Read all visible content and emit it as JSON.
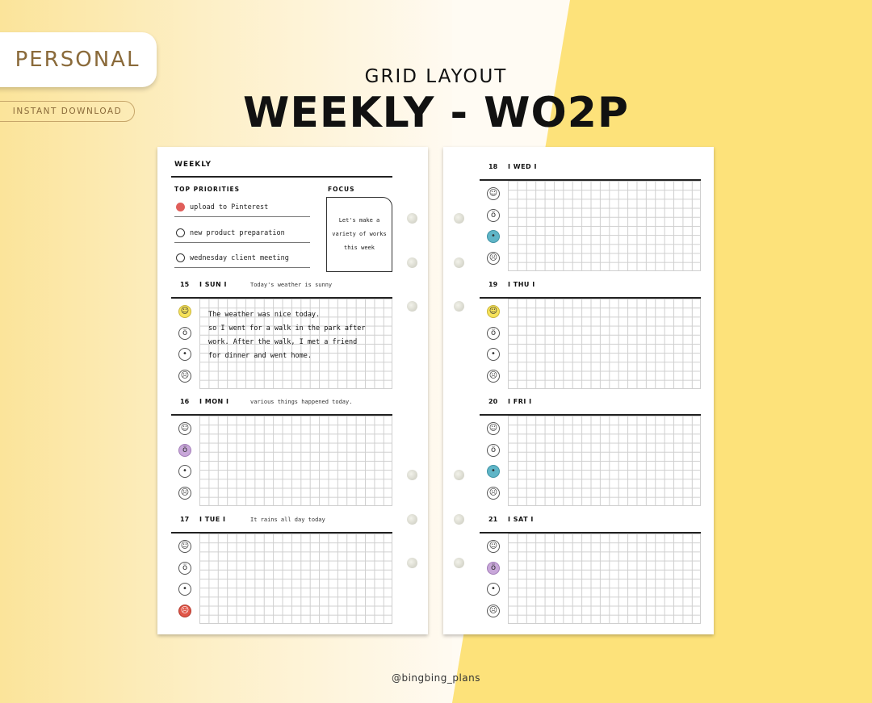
{
  "brand": {
    "badge": "PERSONAL",
    "instant_download": "INSTANT DOWNLOAD",
    "subtitle": "GRID LAYOUT",
    "title": "WEEKLY - WO2P",
    "handle": "@bingbing_plans"
  },
  "planner": {
    "weekly_label": "WEEKLY",
    "top_priorities_label": "TOP PRIORITIES",
    "focus_label": "FOCUS",
    "priorities": [
      {
        "text": "upload to Pinterest",
        "checked": true
      },
      {
        "text": "new product preparation",
        "checked": false
      },
      {
        "text": "wednesday client meeting",
        "checked": false
      }
    ],
    "focus_text": "Let's make a\nvariety of works\nthis week",
    "days": [
      {
        "num": "15",
        "name": "I SUN I",
        "note": "Today's weather is sunny",
        "mood": [
          "yellow",
          "none",
          "none",
          "none"
        ],
        "journal": "The weather was nice today.\nso I went for a walk in the park after\nwork. After the walk, I met a friend\nfor dinner and went home."
      },
      {
        "num": "16",
        "name": "I MON I",
        "note": "various things happened today.",
        "mood": [
          "none",
          "purple",
          "none",
          "none"
        ],
        "journal": ""
      },
      {
        "num": "17",
        "name": "I TUE I",
        "note": "It rains all day today",
        "mood": [
          "none",
          "none",
          "none",
          "red"
        ],
        "journal": ""
      },
      {
        "num": "18",
        "name": "I WED I",
        "note": "",
        "mood": [
          "none",
          "none",
          "blue",
          "none"
        ],
        "journal": ""
      },
      {
        "num": "19",
        "name": "I THU I",
        "note": "",
        "mood": [
          "yellow",
          "none",
          "none",
          "none"
        ],
        "journal": ""
      },
      {
        "num": "20",
        "name": "I FRI I",
        "note": "",
        "mood": [
          "none",
          "none",
          "blue",
          "none"
        ],
        "journal": ""
      },
      {
        "num": "21",
        "name": "I SAT I",
        "note": "",
        "mood": [
          "none",
          "purple",
          "none",
          "none"
        ],
        "journal": ""
      }
    ],
    "mood_icons": [
      "smile-face-icon",
      "surprised-face-icon",
      "neutral-face-icon",
      "sad-face-icon"
    ],
    "mood_glyphs": [
      "☺",
      "ö",
      "•",
      "☹"
    ]
  },
  "colors": {
    "priority_dot": "#e05e5a",
    "yellow": "#f7e35a",
    "purple": "#c8a7d9",
    "blue": "#5fb5c7",
    "red": "#e05547"
  }
}
